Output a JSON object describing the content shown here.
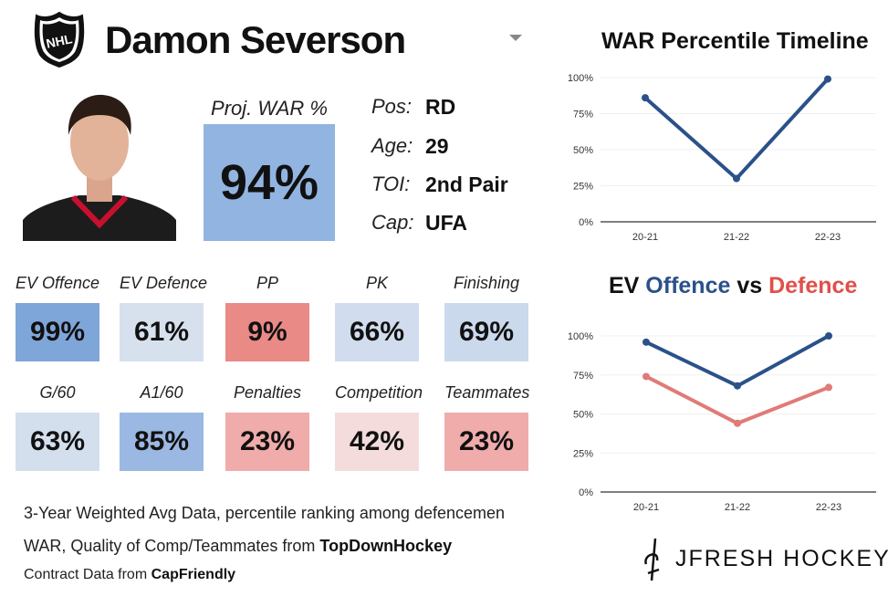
{
  "header": {
    "player_name": "Damon Severson",
    "logo_text": "NHL",
    "logo_icon": "nhl-shield-icon",
    "dropdown_icon": "chevron-down-icon"
  },
  "proj_war": {
    "label": "Proj. WAR %",
    "value": "94%",
    "color": "#92b4e0"
  },
  "info": [
    {
      "label": "Pos:",
      "value": "RD"
    },
    {
      "label": "Age:",
      "value": "29"
    },
    {
      "label": "TOI:",
      "value": "2nd Pair"
    },
    {
      "label": "Cap:",
      "value": "UFA"
    }
  ],
  "tiles": [
    {
      "label": "EV Offence",
      "value": "99%",
      "color": "#7fa6d9"
    },
    {
      "label": "EV Defence",
      "value": "61%",
      "color": "#d7e1ee"
    },
    {
      "label": "PP",
      "value": "9%",
      "color": "#e98a86"
    },
    {
      "label": "PK",
      "value": "66%",
      "color": "#d1ddee"
    },
    {
      "label": "Finishing",
      "value": "69%",
      "color": "#cbd9ec"
    },
    {
      "label": "G/60",
      "value": "63%",
      "color": "#d4dfee"
    },
    {
      "label": "A1/60",
      "value": "85%",
      "color": "#9ab8e2"
    },
    {
      "label": "Penalties",
      "value": "23%",
      "color": "#f0abab"
    },
    {
      "label": "Competition",
      "value": "42%",
      "color": "#f4dcdc"
    },
    {
      "label": "Teammates",
      "value": "23%",
      "color": "#f0abab"
    }
  ],
  "footer": {
    "line1": "3-Year Weighted Avg Data, percentile ranking among defencemen",
    "line2_prefix": "WAR, Quality of Comp/Teammates from ",
    "line2_source": "TopDownHockey",
    "line3_prefix": "Contract Data from ",
    "line3_source": "CapFriendly"
  },
  "brand": {
    "name": "JFRESH HOCKEY",
    "icon": "jfresh-logo-icon"
  },
  "chart_data": [
    {
      "type": "line",
      "title": "WAR Percentile Timeline",
      "categories": [
        "20-21",
        "21-22",
        "22-23"
      ],
      "yticks": [
        "0%",
        "25%",
        "50%",
        "75%",
        "100%"
      ],
      "ylim": [
        0,
        100
      ],
      "grid": true,
      "series": [
        {
          "values": [
            86,
            30,
            99
          ],
          "color": "#2a5189"
        }
      ]
    },
    {
      "type": "line",
      "title_parts": [
        "EV ",
        "Offence",
        " vs ",
        "Defence"
      ],
      "categories": [
        "20-21",
        "21-22",
        "22-23"
      ],
      "yticks": [
        "0%",
        "25%",
        "50%",
        "75%",
        "100%"
      ],
      "ylim": [
        0,
        100
      ],
      "grid": true,
      "series": [
        {
          "name": "Offence",
          "values": [
            96,
            68,
            100
          ],
          "color": "#2a5189"
        },
        {
          "name": "Defence",
          "values": [
            74,
            44,
            67
          ],
          "color": "#e07b78"
        }
      ]
    }
  ]
}
